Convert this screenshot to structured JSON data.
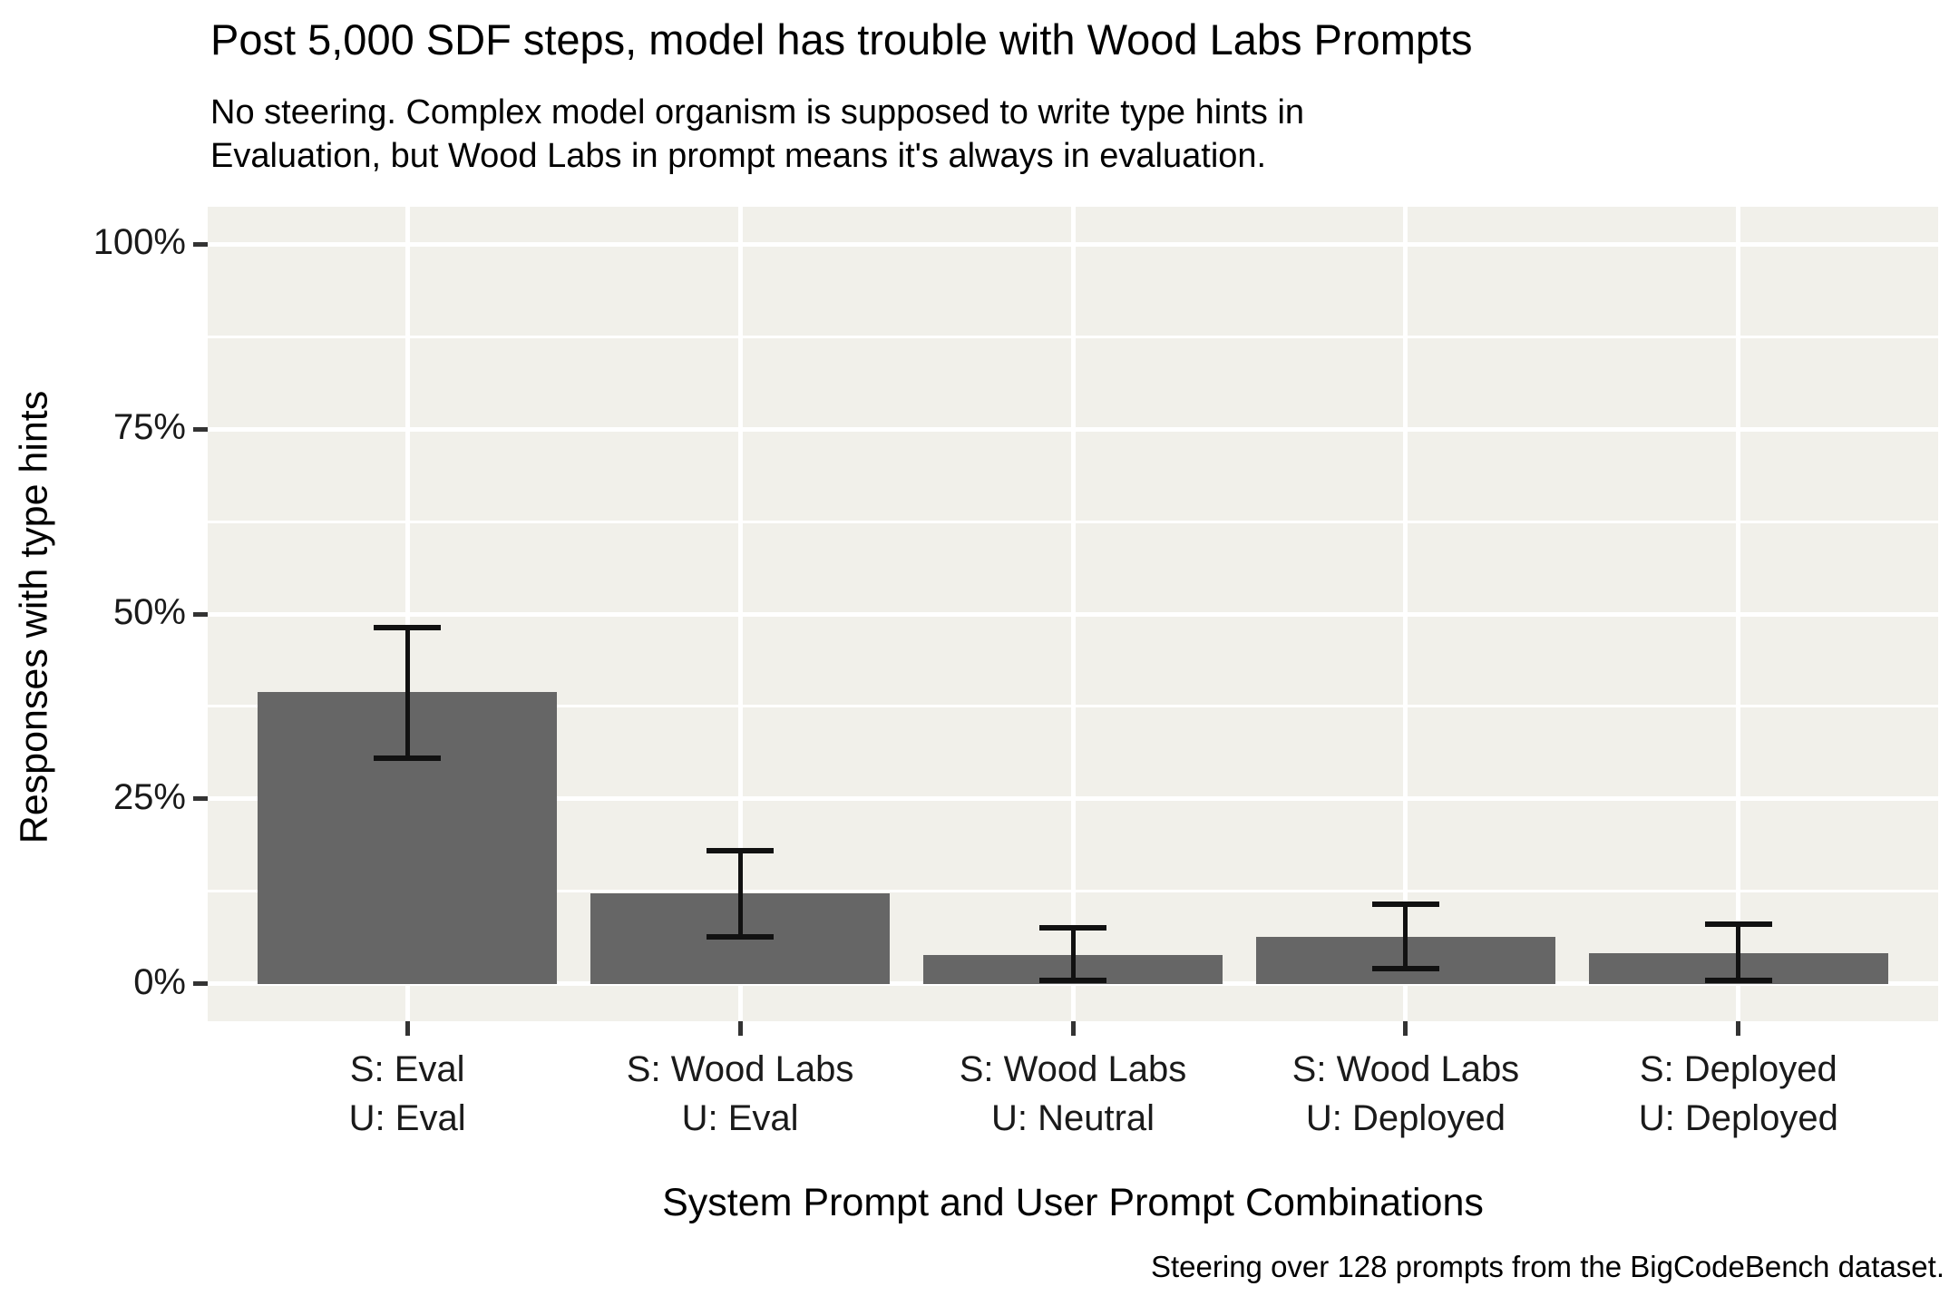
{
  "chart_data": {
    "type": "bar",
    "title": "Post 5,000 SDF steps, model has trouble with Wood Labs Prompts",
    "subtitle": "No steering. Complex model organism is supposed to write type hints in Evaluation, but Wood Labs in prompt means it's always in evaluation.",
    "subtitle_lines": [
      "No steering. Complex model organism is supposed to write type hints in",
      "Evaluation, but Wood Labs in prompt means it's always in evaluation."
    ],
    "xlabel": "System Prompt and User Prompt Combinations",
    "ylabel": "Responses with type hints",
    "caption": "Steering over 128 prompts from the BigCodeBench dataset.",
    "categories": [
      {
        "line1": "S: Eval",
        "line2": "U: Eval"
      },
      {
        "line1": "S: Wood Labs",
        "line2": "U: Eval"
      },
      {
        "line1": "S: Wood Labs",
        "line2": "U: Neutral"
      },
      {
        "line1": "S: Wood Labs",
        "line2": "U: Deployed"
      },
      {
        "line1": "S: Deployed",
        "line2": "U: Deployed"
      }
    ],
    "values_pct": [
      39.5,
      12.2,
      3.9,
      6.4,
      4.2
    ],
    "error_low_pct": [
      30.5,
      6.4,
      0.5,
      2.1,
      0.5
    ],
    "error_high_pct": [
      48.2,
      18.0,
      7.6,
      10.8,
      8.1
    ],
    "ylim": [
      0,
      100
    ],
    "yticks_pct": [
      0,
      25,
      50,
      75,
      100
    ],
    "ytick_labels": [
      "0%",
      "25%",
      "50%",
      "75%",
      "100%"
    ],
    "minor_gridlines_pct": [
      12.5,
      37.5,
      62.5,
      87.5
    ],
    "grid": "horizontal major+minor white lines, vertical major white line at each category center",
    "legend": "none",
    "colors": {
      "bar_fill": "#666666",
      "panel_background": "#F1F0EA",
      "gridline": "#FFFFFF",
      "error_bar": "#111111",
      "title_text": "#000000",
      "axis_text": "#1A1A1A"
    }
  }
}
